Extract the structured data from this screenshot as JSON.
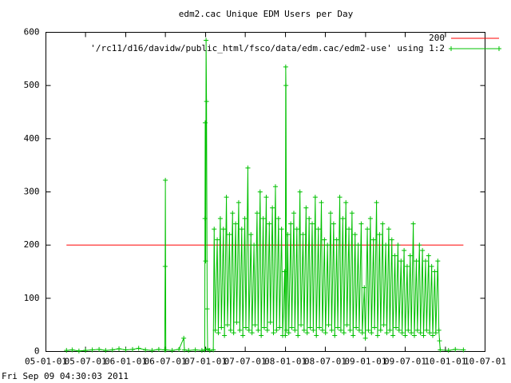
{
  "chart_data": {
    "type": "line",
    "title": "edm2.cac Unique EDM Users per Day",
    "timestamp": "Fri Sep 09 04:30:03 2011",
    "legend": "top-right",
    "xlim": [
      "05-01-01",
      "10-07-01"
    ],
    "xticks": [
      "05-01-01",
      "05-07-01",
      "06-01-01",
      "06-07-01",
      "07-01-01",
      "07-07-01",
      "08-01-01",
      "08-07-01",
      "09-01-01",
      "09-07-01",
      "10-01-01",
      "10-07-01"
    ],
    "ylim": [
      0,
      600
    ],
    "yticks": [
      0,
      100,
      200,
      300,
      400,
      500,
      600
    ],
    "series": [
      {
        "name": "200",
        "color": "#ff0000",
        "points": false,
        "x": [
          "05-04-05",
          "10-03-24"
        ],
        "values": [
          200,
          200
        ]
      },
      {
        "name": "'/rc11/d16/davidw/public_html/fsco/data/edm.cac/edm2-use' using 1:2",
        "color": "#00c000",
        "points": true,
        "x": [
          "05-04-05",
          "05-05-01",
          "05-06-01",
          "05-07-01",
          "05-08-01",
          "05-09-01",
          "05-10-01",
          "05-11-01",
          "05-12-01",
          "06-01-01",
          "06-02-01",
          "06-03-01",
          "06-04-01",
          "06-05-01",
          "06-06-01",
          "06-06-28",
          "06-06-30",
          "06-07-01",
          "06-07-03",
          "06-08-01",
          "06-09-01",
          "06-09-23",
          "06-09-26",
          "06-10-15",
          "06-11-15",
          "06-12-15",
          "06-12-28",
          "06-12-29",
          "06-12-30",
          "07-01-01",
          "07-01-03",
          "07-01-05",
          "07-01-08",
          "07-01-10",
          "07-01-20",
          "07-02-05",
          "07-02-09",
          "07-02-14",
          "07-02-23",
          "07-02-28",
          "07-03-09",
          "07-03-14",
          "07-03-23",
          "07-03-28",
          "07-04-06",
          "07-04-11",
          "07-04-20",
          "07-04-25",
          "07-05-04",
          "07-05-09",
          "07-05-18",
          "07-05-23",
          "07-06-01",
          "07-06-06",
          "07-06-15",
          "07-06-20",
          "07-06-29",
          "07-07-04",
          "07-07-13",
          "07-07-18",
          "07-07-27",
          "07-08-01",
          "07-08-10",
          "07-08-15",
          "07-08-24",
          "07-08-29",
          "07-09-07",
          "07-09-12",
          "07-09-21",
          "07-09-26",
          "07-10-05",
          "07-10-10",
          "07-10-19",
          "07-10-24",
          "07-11-02",
          "07-11-07",
          "07-11-16",
          "07-11-21",
          "07-11-30",
          "07-12-05",
          "07-12-14",
          "07-12-19",
          "07-12-28",
          "07-12-31",
          "08-01-02",
          "08-01-03",
          "08-01-06",
          "08-01-11",
          "08-01-16",
          "08-01-25",
          "08-01-30",
          "08-02-08",
          "08-02-13",
          "08-02-22",
          "08-02-27",
          "08-03-07",
          "08-03-12",
          "08-03-21",
          "08-03-26",
          "08-04-04",
          "08-04-09",
          "08-04-18",
          "08-04-23",
          "08-05-02",
          "08-05-07",
          "08-05-16",
          "08-05-21",
          "08-05-30",
          "08-06-04",
          "08-06-13",
          "08-06-18",
          "08-06-27",
          "08-07-02",
          "08-07-11",
          "08-07-16",
          "08-07-25",
          "08-07-30",
          "08-08-08",
          "08-08-13",
          "08-08-22",
          "08-08-27",
          "08-09-05",
          "08-09-10",
          "08-09-19",
          "08-09-24",
          "08-10-03",
          "08-10-08",
          "08-10-17",
          "08-10-22",
          "08-10-31",
          "08-11-05",
          "08-11-14",
          "08-11-19",
          "08-11-28",
          "08-12-03",
          "08-12-12",
          "08-12-17",
          "08-12-26",
          "08-12-31",
          "09-01-09",
          "09-01-14",
          "09-01-23",
          "09-01-28",
          "09-02-06",
          "09-02-11",
          "09-02-20",
          "09-02-25",
          "09-03-06",
          "09-03-11",
          "09-03-20",
          "09-03-25",
          "09-04-03",
          "09-04-08",
          "09-04-17",
          "09-04-22",
          "09-05-01",
          "09-05-06",
          "09-05-15",
          "09-05-20",
          "09-05-29",
          "09-06-03",
          "09-06-12",
          "09-06-17",
          "09-06-26",
          "09-07-01",
          "09-07-10",
          "09-07-15",
          "09-07-24",
          "09-07-29",
          "09-08-07",
          "09-08-12",
          "09-08-21",
          "09-08-26",
          "09-09-04",
          "09-09-09",
          "09-09-18",
          "09-09-23",
          "09-10-02",
          "09-10-07",
          "09-10-16",
          "09-10-21",
          "09-10-30",
          "09-11-04",
          "09-11-13",
          "09-11-18",
          "09-11-27",
          "09-12-02",
          "09-12-05",
          "09-12-08",
          "10-01-15",
          "10-02-15",
          "10-03-24"
        ],
        "values": [
          2,
          3,
          1,
          2,
          3,
          4,
          2,
          3,
          5,
          3,
          4,
          6,
          3,
          2,
          4,
          3,
          160,
          322,
          3,
          2,
          4,
          25,
          3,
          2,
          3,
          2,
          3,
          250,
          430,
          170,
          585,
          470,
          80,
          5,
          2,
          3,
          230,
          40,
          210,
          35,
          250,
          45,
          230,
          30,
          290,
          50,
          220,
          40,
          260,
          35,
          240,
          55,
          280,
          40,
          230,
          30,
          250,
          45,
          345,
          40,
          220,
          35,
          200,
          50,
          260,
          40,
          300,
          30,
          250,
          45,
          290,
          40,
          240,
          55,
          270,
          35,
          310,
          40,
          250,
          45,
          230,
          30,
          150,
          30,
          535,
          500,
          40,
          220,
          35,
          240,
          45,
          260,
          40,
          230,
          30,
          300,
          50,
          220,
          40,
          270,
          35,
          250,
          45,
          240,
          40,
          290,
          30,
          230,
          45,
          280,
          40,
          210,
          35,
          200,
          50,
          260,
          40,
          240,
          30,
          210,
          45,
          290,
          40,
          250,
          35,
          280,
          50,
          230,
          40,
          260,
          30,
          220,
          45,
          200,
          40,
          240,
          35,
          120,
          25,
          230,
          40,
          250,
          35,
          210,
          45,
          280,
          30,
          220,
          40,
          240,
          50,
          200,
          35,
          230,
          40,
          210,
          30,
          180,
          45,
          200,
          40,
          170,
          35,
          190,
          30,
          160,
          40,
          180,
          35,
          240,
          30,
          170,
          40,
          200,
          35,
          190,
          30,
          170,
          40,
          180,
          35,
          160,
          30,
          150,
          35,
          170,
          40,
          20,
          3,
          2,
          4,
          3
        ]
      }
    ]
  }
}
